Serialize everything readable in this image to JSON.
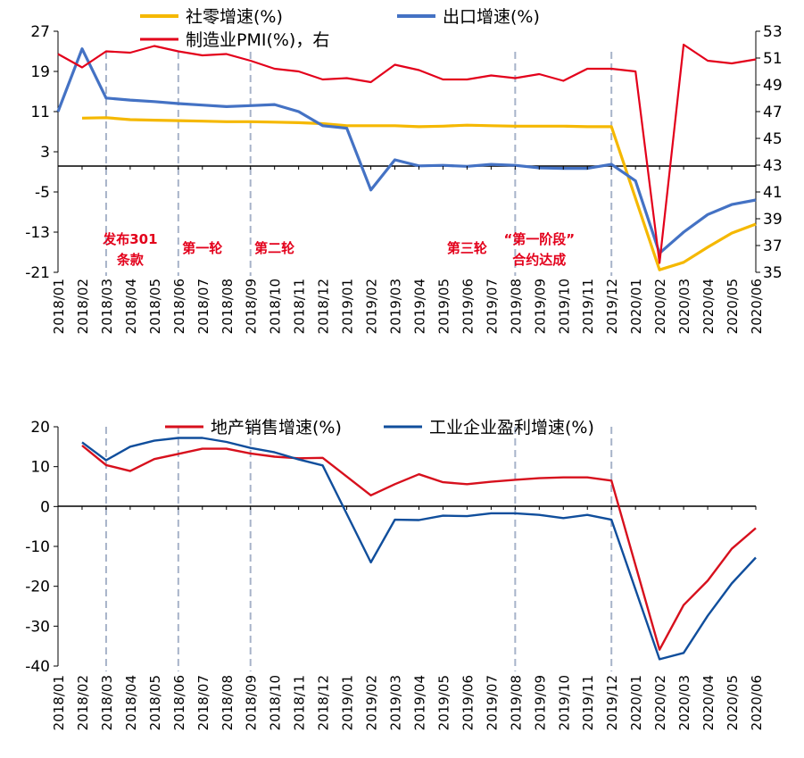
{
  "chart_data": [
    {
      "type": "line",
      "categories": [
        "2018/01",
        "2018/02",
        "2018/03",
        "2018/04",
        "2018/05",
        "2018/06",
        "2018/07",
        "2018/08",
        "2018/09",
        "2018/10",
        "2018/11",
        "2018/12",
        "2019/01",
        "2019/02",
        "2019/03",
        "2019/04",
        "2019/05",
        "2019/06",
        "2019/07",
        "2019/08",
        "2019/09",
        "2019/10",
        "2019/11",
        "2019/12",
        "2020/01",
        "2020/02",
        "2020/03",
        "2020/04",
        "2020/05",
        "2020/06"
      ],
      "yticks_left": [
        "27",
        "19",
        "11",
        "3",
        "-5",
        "-13",
        "-21"
      ],
      "yticks_right": [
        "53",
        "51",
        "49",
        "47",
        "45",
        "43",
        "41",
        "39",
        "37",
        "35"
      ],
      "ylim_left": [
        -21,
        27
      ],
      "ylim_right": [
        35,
        53
      ],
      "legend": [
        "社零增速(%)",
        "出口增速(%)",
        "制造业PMI(%)，右"
      ],
      "series": [
        {
          "name": "社零增速(%)",
          "axis": "left",
          "color": "#f5b800",
          "values": [
            null,
            9.7,
            9.8,
            9.4,
            9.3,
            9.2,
            9.1,
            9.0,
            9.0,
            8.9,
            8.8,
            8.6,
            8.2,
            8.2,
            8.2,
            8.0,
            8.1,
            8.3,
            8.2,
            8.1,
            8.1,
            8.1,
            8.0,
            8.0,
            null,
            -20.5,
            -19.0,
            -16.0,
            -13.2,
            -11.4
          ]
        },
        {
          "name": "出口增速(%)",
          "axis": "left",
          "color": "#4472c4",
          "values": [
            11.0,
            23.5,
            13.7,
            13.3,
            13.0,
            12.6,
            12.3,
            12.0,
            12.2,
            12.4,
            11.0,
            8.2,
            7.7,
            -4.6,
            1.4,
            0.2,
            0.3,
            0.1,
            0.5,
            0.3,
            -0.2,
            -0.3,
            -0.3,
            0.5,
            -2.8,
            -17.2,
            -13.0,
            -9.5,
            -7.5,
            -6.6
          ]
        },
        {
          "name": "制造业PMI(%)，右",
          "axis": "right",
          "color": "#e3001b",
          "values": [
            51.3,
            50.3,
            51.5,
            51.4,
            51.9,
            51.5,
            51.2,
            51.3,
            50.8,
            50.2,
            50.0,
            49.4,
            49.5,
            49.2,
            50.5,
            50.1,
            49.4,
            49.4,
            49.7,
            49.5,
            49.8,
            49.3,
            50.2,
            50.2,
            50.0,
            35.7,
            52.0,
            50.8,
            50.6,
            50.9
          ]
        }
      ],
      "annotations": [
        {
          "text": "发布301",
          "category": "2018/04"
        },
        {
          "text": "条款",
          "category": "2018/04"
        },
        {
          "text": "第一轮",
          "category": "2018/07"
        },
        {
          "text": "第二轮",
          "category": "2018/10"
        },
        {
          "text": "第三轮",
          "category": "2019/06"
        },
        {
          "text": "“第一阶段”",
          "category": "2019/09"
        },
        {
          "text": "合约达成",
          "category": "2019/09"
        }
      ],
      "event_markers": [
        "2018/03",
        "2018/06",
        "2018/09",
        "2019/08",
        "2019/12"
      ]
    },
    {
      "type": "line",
      "categories": [
        "2018/01",
        "2018/02",
        "2018/03",
        "2018/04",
        "2018/05",
        "2018/06",
        "2018/07",
        "2018/08",
        "2018/09",
        "2018/10",
        "2018/11",
        "2018/12",
        "2019/01",
        "2019/02",
        "2019/03",
        "2019/04",
        "2019/05",
        "2019/06",
        "2019/07",
        "2019/08",
        "2019/09",
        "2019/10",
        "2019/11",
        "2019/12",
        "2020/01",
        "2020/02",
        "2020/03",
        "2020/04",
        "2020/05",
        "2020/06"
      ],
      "yticks": [
        "20",
        "10",
        "0",
        "-10",
        "-20",
        "-30",
        "-40"
      ],
      "ylim": [
        -40,
        20
      ],
      "legend": [
        "地产销售增速(%)",
        "工业企业盈利增速(%)"
      ],
      "series": [
        {
          "name": "地产销售增速(%)",
          "color": "#d7101d",
          "values": [
            null,
            15.3,
            10.4,
            8.9,
            11.9,
            13.2,
            14.5,
            14.5,
            13.3,
            12.5,
            12.1,
            12.2,
            null,
            2.8,
            5.6,
            8.1,
            6.1,
            5.6,
            6.2,
            6.7,
            7.1,
            7.3,
            7.3,
            6.5,
            null,
            -35.9,
            -24.7,
            -18.6,
            -10.6,
            -5.4
          ]
        },
        {
          "name": "工业企业盈利增速(%)",
          "color": "#104e9c",
          "values": [
            null,
            16.1,
            11.6,
            15.0,
            16.5,
            17.2,
            17.2,
            16.2,
            14.7,
            13.6,
            11.8,
            10.3,
            null,
            -14.0,
            -3.3,
            -3.4,
            -2.3,
            -2.4,
            -1.7,
            -1.7,
            -2.1,
            -2.9,
            -2.1,
            -3.3,
            null,
            -38.3,
            -36.7,
            -27.4,
            -19.3,
            -12.8
          ]
        }
      ],
      "event_markers": [
        "2018/03",
        "2018/06",
        "2018/09",
        "2019/08",
        "2019/12"
      ]
    }
  ]
}
